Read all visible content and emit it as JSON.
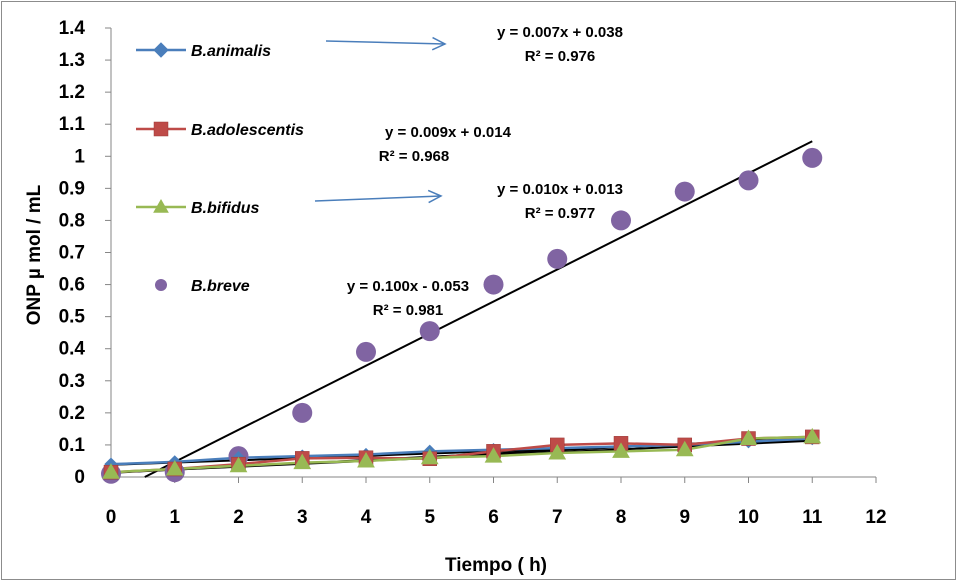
{
  "chart_data": {
    "type": "scatter",
    "xlabel": "Tiempo ( h)",
    "ylabel": "ONP µ mol / mL",
    "xlim": [
      0,
      12
    ],
    "ylim": [
      0,
      1.4
    ],
    "x_ticks": [
      "0",
      "1",
      "2",
      "3",
      "4",
      "5",
      "6",
      "7",
      "8",
      "9",
      "10",
      "11",
      "12"
    ],
    "y_ticks": [
      "0",
      "0.1",
      "0.2",
      "0.3",
      "0.4",
      "0.5",
      "0.6",
      "0.7",
      "0.8",
      "0.9",
      "1",
      "1.1",
      "1.2",
      "1.3",
      "1.4"
    ],
    "grid": false,
    "legend_position": "left",
    "series": [
      {
        "name": "B.animalis",
        "marker": "diamond",
        "line": true,
        "color": "#4a7ebb",
        "x": [
          0,
          1,
          2,
          3,
          4,
          5,
          6,
          7,
          8,
          9,
          10,
          11
        ],
        "y": [
          0.04,
          0.047,
          0.06,
          0.065,
          0.07,
          0.08,
          0.085,
          0.09,
          0.095,
          0.1,
          0.11,
          0.12
        ]
      },
      {
        "name": "B.adolescentis",
        "marker": "square",
        "line": true,
        "color": "#be4b48",
        "x": [
          0,
          1,
          2,
          3,
          4,
          5,
          6,
          7,
          8,
          9,
          10,
          11
        ],
        "y": [
          0.015,
          0.025,
          0.04,
          0.058,
          0.06,
          0.057,
          0.08,
          0.1,
          0.105,
          0.1,
          0.12,
          0.125
        ]
      },
      {
        "name": "B.bifidus",
        "marker": "triangle",
        "line": true,
        "color": "#98b954",
        "x": [
          0,
          1,
          2,
          3,
          4,
          5,
          6,
          7,
          8,
          9,
          10,
          11
        ],
        "y": [
          0.015,
          0.025,
          0.035,
          0.045,
          0.05,
          0.06,
          0.065,
          0.075,
          0.08,
          0.085,
          0.12,
          0.125
        ]
      },
      {
        "name": "B.breve",
        "marker": "circle",
        "line": false,
        "color": "#8064a2",
        "x": [
          0,
          1,
          2,
          3,
          4,
          5,
          6,
          7,
          8,
          9,
          10,
          11
        ],
        "y": [
          0.01,
          0.015,
          0.065,
          0.2,
          0.39,
          0.455,
          0.6,
          0.68,
          0.8,
          0.89,
          0.925,
          0.995
        ]
      }
    ],
    "trendlines": [
      {
        "series": "B.animalis",
        "equation": "y = 0.007x + 0.038",
        "r2": "R² = 0.976",
        "slope": 0.007,
        "intercept": 0.038
      },
      {
        "series": "B.adolescentis",
        "equation": "y = 0.009x + 0.014",
        "r2": "R² = 0.968",
        "slope": 0.009,
        "intercept": 0.014
      },
      {
        "series": "B.bifidus",
        "equation": "y = 0.010x + 0.013",
        "r2": "R² = 0.977",
        "slope": 0.01,
        "intercept": 0.013
      },
      {
        "series": "B.breve",
        "equation": "y = 0.100x - 0.053",
        "r2": "R² = 0.981",
        "slope": 0.1,
        "intercept": -0.053
      }
    ]
  }
}
